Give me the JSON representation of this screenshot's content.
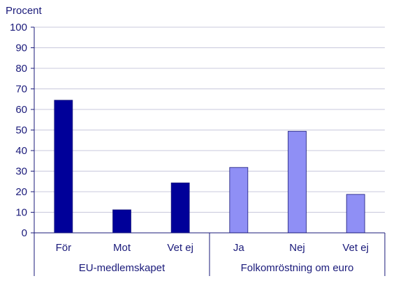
{
  "chart_data": {
    "type": "bar",
    "ylabel": "Procent",
    "ylim": [
      0,
      100
    ],
    "yticks": [
      0,
      10,
      20,
      30,
      40,
      50,
      60,
      70,
      80,
      90,
      100
    ],
    "grid": true,
    "groups": [
      {
        "label": "EU-medlemskapet",
        "color": "#000099",
        "categories": [
          "För",
          "Mot",
          "Vet ej"
        ],
        "values": [
          64.5,
          11.2,
          24.3
        ]
      },
      {
        "label": "Folkomröstning om euro",
        "color": "#8f8ff5",
        "categories": [
          "Ja",
          "Nej",
          "Vet ej"
        ],
        "values": [
          31.8,
          49.4,
          18.7
        ]
      }
    ]
  }
}
